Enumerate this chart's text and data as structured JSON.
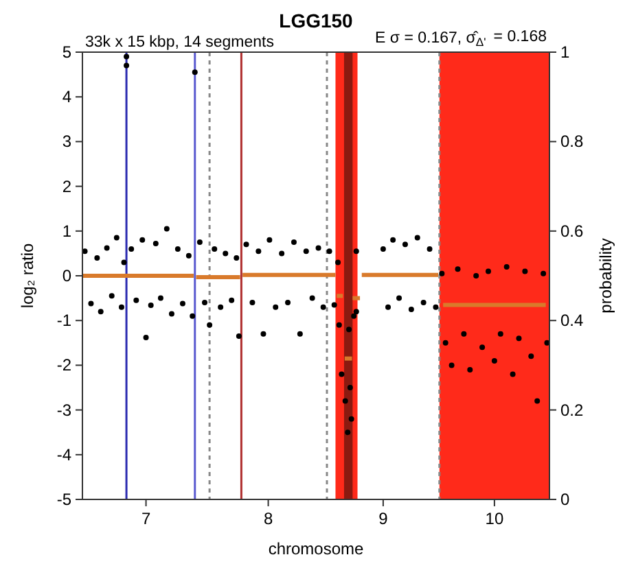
{
  "chart_data": {
    "type": "scatter",
    "title": "LGG150",
    "xlabel": "chromosome",
    "ylabel": "log₂ ratio",
    "y2label": "probability",
    "annotations": [
      "33k x 15 kbp, 14 segments",
      "E σ = 0.167, σ̂$_{Δ'}$ = 0.168"
    ],
    "xlim": [
      6.48,
      10.3
    ],
    "xticks": [
      7,
      8,
      {
        "value": 8.94,
        "label": "9"
      },
      {
        "value": 9.85,
        "label": "10"
      }
    ],
    "ylim": [
      -5,
      5
    ],
    "yticks": [
      -5,
      -4,
      -3,
      -2,
      -1,
      0,
      1,
      2,
      3,
      4,
      5
    ],
    "y2lim": [
      0,
      1
    ],
    "y2ticks": [
      0,
      0.2,
      0.4,
      0.6,
      0.8,
      1
    ],
    "bands": [
      {
        "axis": "x",
        "from": 8.55,
        "to": 8.73,
        "color": "#ff2a1a"
      },
      {
        "axis": "x",
        "from": 8.62,
        "to": 8.69,
        "color": "#8b1a10"
      },
      {
        "axis": "x",
        "from": 9.4,
        "to": 10.3,
        "color": "#ff2a1a"
      }
    ],
    "ref_lines": [
      {
        "axis": "x",
        "value": 6.84,
        "color": "#2b2bb0"
      },
      {
        "axis": "x",
        "value": 7.4,
        "color": "#5a5ad0"
      },
      {
        "axis": "x",
        "value": 7.52,
        "color": "#888888",
        "line_style": "dashed"
      },
      {
        "axis": "x",
        "value": 7.78,
        "color": "#b03030"
      },
      {
        "axis": "x",
        "value": 8.48,
        "color": "#888888",
        "line_style": "dashed"
      },
      {
        "axis": "x",
        "value": 9.4,
        "color": "#888888",
        "line_style": "dashed"
      }
    ],
    "series": [
      {
        "marker": "circle",
        "color": "#000000",
        "x": [
          6.5,
          6.55,
          6.6,
          6.63,
          6.68,
          6.72,
          6.76,
          6.8,
          6.82,
          6.88,
          6.92,
          6.97,
          7.0,
          7.04,
          7.08,
          7.12,
          7.17,
          7.21,
          7.26,
          7.3,
          7.35,
          7.38,
          7.44,
          7.48,
          7.52,
          7.56,
          7.61,
          7.65,
          7.7,
          7.74,
          7.76,
          7.82,
          7.87,
          7.92,
          7.96,
          8.01,
          8.06,
          8.11,
          8.16,
          8.21,
          8.26,
          8.31,
          8.36,
          8.41,
          8.45,
          8.5,
          8.54,
          8.57,
          8.58,
          8.6,
          8.63,
          8.65,
          8.66,
          8.67,
          8.68,
          8.7,
          8.72,
          8.72,
          8.94,
          8.98,
          9.02,
          9.07,
          9.12,
          9.17,
          9.22,
          9.27,
          9.32,
          9.37,
          9.42,
          9.45,
          9.5,
          9.55,
          9.6,
          9.65,
          9.7,
          9.75,
          9.8,
          9.85,
          9.9,
          9.95,
          10.0,
          10.05,
          10.1,
          10.15,
          10.2,
          10.25,
          10.28,
          6.84,
          6.84,
          7.4
        ],
        "values": [
          0.55,
          -0.62,
          0.4,
          -0.8,
          0.62,
          -0.45,
          0.85,
          -0.7,
          0.3,
          0.6,
          -0.55,
          0.8,
          -1.38,
          -0.66,
          0.72,
          -0.5,
          1.05,
          -0.85,
          0.6,
          -0.62,
          0.45,
          -0.9,
          0.75,
          -0.6,
          -1.1,
          0.6,
          -0.7,
          0.5,
          -0.55,
          0.4,
          -1.35,
          0.7,
          -0.6,
          0.55,
          -1.3,
          0.8,
          -0.7,
          0.5,
          -0.6,
          0.75,
          -1.3,
          0.55,
          -0.5,
          0.62,
          -0.7,
          0.55,
          -0.65,
          0.3,
          -1.1,
          -2.2,
          -2.8,
          -3.5,
          -1.2,
          -2.5,
          -3.2,
          -0.9,
          0.55,
          -0.8,
          0.6,
          -0.7,
          0.8,
          -0.5,
          0.7,
          -0.75,
          0.85,
          -0.6,
          0.6,
          -0.7,
          0.05,
          -1.5,
          -2.0,
          0.15,
          -1.3,
          -2.1,
          0.0,
          -1.6,
          0.1,
          -1.9,
          -1.3,
          0.2,
          -2.2,
          -1.4,
          0.1,
          -1.8,
          -2.8,
          0.05,
          -1.5,
          4.7,
          4.9,
          4.55
        ]
      },
      {
        "type": "line",
        "color": "#d97a2b",
        "x": [
          6.48,
          7.39
        ],
        "values": [
          0,
          0
        ]
      },
      {
        "type": "line",
        "color": "#d97a2b",
        "x": [
          7.41,
          7.77
        ],
        "values": [
          -0.03,
          -0.03
        ]
      },
      {
        "type": "line",
        "color": "#d97a2b",
        "x": [
          7.79,
          8.55
        ],
        "values": [
          0.02,
          0.02
        ]
      },
      {
        "type": "line",
        "color": "#d97a2b",
        "x": [
          8.56,
          8.61
        ],
        "values": [
          -0.45,
          -0.45
        ]
      },
      {
        "type": "line",
        "color": "#d97a2b",
        "x": [
          8.625,
          8.685
        ],
        "values": [
          -1.85,
          -1.85
        ]
      },
      {
        "type": "line",
        "color": "#d97a2b",
        "x": [
          8.69,
          8.75
        ],
        "values": [
          -0.5,
          -0.5
        ]
      },
      {
        "type": "line",
        "color": "#d97a2b",
        "x": [
          8.765,
          9.39
        ],
        "values": [
          0.02,
          0.02
        ]
      },
      {
        "type": "line",
        "color": "#d97a2b",
        "x": [
          9.43,
          10.27
        ],
        "values": [
          -0.65,
          -0.65
        ]
      }
    ]
  }
}
